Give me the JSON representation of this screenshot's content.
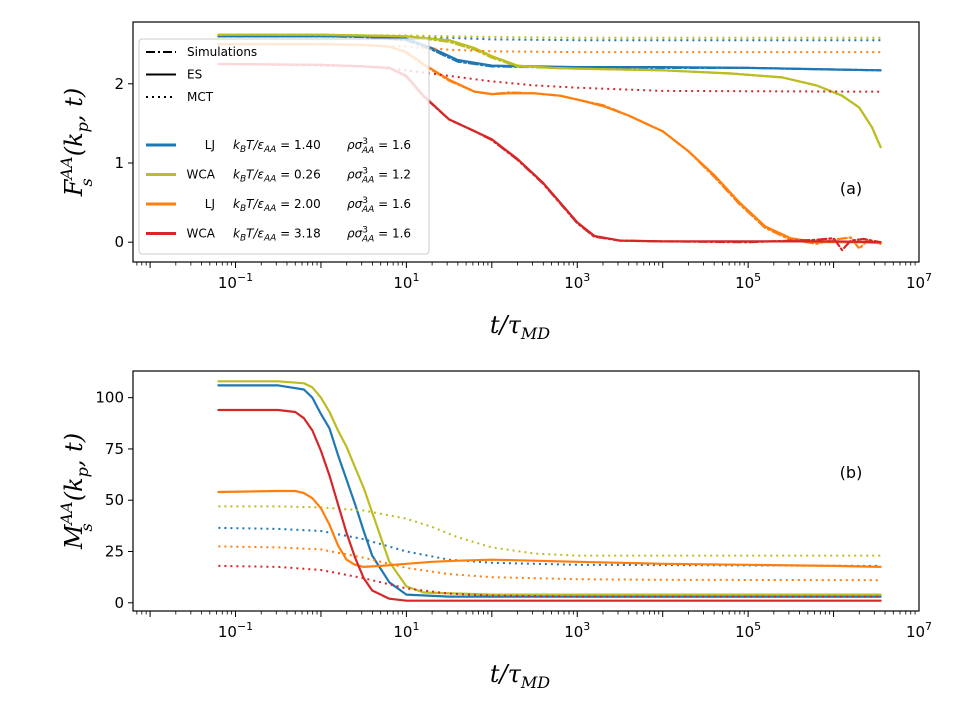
{
  "chart_data": [
    {
      "id": "a",
      "type": "line",
      "panel_label": "(a)",
      "ylabel_main": "F",
      "ylabel_sub": "s",
      "ylabel_sup": "AA",
      "ylabel_args": "(k",
      "ylabel_args_sub": "p",
      "ylabel_args_end": ", t)",
      "xlabel_main": "t/τ",
      "xlabel_sub": "MD",
      "xscale": "log",
      "xlim": [
        -2.2,
        7
      ],
      "ylim": [
        -0.25,
        2.78
      ],
      "xticks": [
        {
          "v": -1,
          "base": "10",
          "exp": "−1"
        },
        {
          "v": 1,
          "base": "10",
          "exp": "1"
        },
        {
          "v": 3,
          "base": "10",
          "exp": "3"
        },
        {
          "v": 5,
          "base": "10",
          "exp": "5"
        },
        {
          "v": 7,
          "base": "10",
          "exp": "7"
        }
      ],
      "yticks": [
        {
          "v": 0,
          "label": "0"
        },
        {
          "v": 1,
          "label": "1"
        },
        {
          "v": 2,
          "label": "2"
        }
      ],
      "legend_styles": [
        {
          "style": "dashdot",
          "label": "Simulations"
        },
        {
          "style": "solid",
          "label": "ES"
        },
        {
          "style": "dotted",
          "label": "MCT"
        }
      ],
      "legend_systems": [
        {
          "color": "#1f77b4",
          "model": "LJ",
          "temp": "k_BT/ε_AA = 1.40",
          "temp_value": "1.40",
          "density_value": "1.6"
        },
        {
          "color": "#bcbd22",
          "model": "WCA",
          "temp": "k_BT/ε_AA = 0.26",
          "temp_value": "0.26",
          "density_value": "1.2"
        },
        {
          "color": "#ff7f0e",
          "model": "LJ",
          "temp": "k_BT/ε_AA = 2.00",
          "temp_value": "2.00",
          "density_value": "1.6"
        },
        {
          "color": "#d62728",
          "model": "WCA",
          "temp": "k_BT/ε_AA = 3.18",
          "temp_value": "3.18",
          "density_value": "1.6"
        }
      ],
      "series": [
        {
          "name": "LJ T=1.40 ES",
          "color": "#1f77b4",
          "style": "solid",
          "x": [
            -1.2,
            0,
            0.5,
            1,
            1.3,
            1.6,
            2,
            2.5,
            3,
            4,
            5,
            6,
            6.55
          ],
          "y": [
            2.6,
            2.6,
            2.6,
            2.57,
            2.45,
            2.3,
            2.23,
            2.22,
            2.21,
            2.21,
            2.2,
            2.18,
            2.17
          ]
        },
        {
          "name": "LJ T=1.40 Sim",
          "color": "#1f77b4",
          "style": "dashdot",
          "x": [
            -1.2,
            0,
            0.5,
            1,
            1.3,
            1.6,
            2,
            2.5,
            3,
            4,
            5,
            6,
            6.55
          ],
          "y": [
            2.6,
            2.6,
            2.59,
            2.55,
            2.43,
            2.28,
            2.22,
            2.21,
            2.21,
            2.2,
            2.2,
            2.18,
            2.17
          ]
        },
        {
          "name": "LJ T=1.40 MCT",
          "color": "#1f77b4",
          "style": "dotted",
          "x": [
            -1.2,
            1,
            1.5,
            2,
            3,
            6.55
          ],
          "y": [
            2.6,
            2.6,
            2.58,
            2.56,
            2.55,
            2.55
          ]
        },
        {
          "name": "WCA T=0.26 ES",
          "color": "#bcbd22",
          "style": "solid",
          "x": [
            -1.2,
            0,
            1,
            1.5,
            1.8,
            2,
            2.3,
            2.7,
            3,
            4,
            4.8,
            5.4,
            5.8,
            6.1,
            6.3,
            6.45,
            6.55
          ],
          "y": [
            2.62,
            2.62,
            2.6,
            2.55,
            2.45,
            2.35,
            2.23,
            2.2,
            2.19,
            2.17,
            2.13,
            2.08,
            1.98,
            1.85,
            1.7,
            1.45,
            1.2
          ]
        },
        {
          "name": "WCA T=0.26 Sim",
          "color": "#bcbd22",
          "style": "dashdot",
          "x": [
            -1.2,
            0,
            1,
            1.5,
            1.8,
            2,
            2.3,
            2.7,
            3,
            4,
            4.8,
            5.4,
            5.8,
            6.1,
            6.3,
            6.45,
            6.55
          ],
          "y": [
            2.62,
            2.62,
            2.6,
            2.53,
            2.43,
            2.33,
            2.22,
            2.2,
            2.19,
            2.17,
            2.13,
            2.08,
            1.98,
            1.85,
            1.7,
            1.45,
            1.2
          ]
        },
        {
          "name": "WCA T=0.26 MCT",
          "color": "#bcbd22",
          "style": "dotted",
          "x": [
            -1.2,
            1,
            2,
            3,
            6.55
          ],
          "y": [
            2.62,
            2.61,
            2.59,
            2.58,
            2.58
          ]
        },
        {
          "name": "LJ T=2.00 ES",
          "color": "#ff7f0e",
          "style": "solid",
          "x": [
            -1.2,
            0,
            0.5,
            0.8,
            1,
            1.2,
            1.5,
            1.8,
            2.0,
            2.2,
            2.5,
            2.8,
            3.0,
            3.3,
            3.6,
            4.0,
            4.3,
            4.6,
            4.9,
            5.2,
            5.5,
            5.8,
            6.0,
            6.3,
            6.55
          ],
          "y": [
            2.5,
            2.5,
            2.49,
            2.47,
            2.4,
            2.25,
            2.05,
            1.9,
            1.87,
            1.88,
            1.88,
            1.85,
            1.8,
            1.72,
            1.6,
            1.4,
            1.15,
            0.85,
            0.5,
            0.2,
            0.05,
            0.0,
            0.0,
            0.0,
            -0.01
          ]
        },
        {
          "name": "LJ T=2.00 Sim",
          "color": "#ff7f0e",
          "style": "dashdot",
          "x": [
            -1.2,
            0,
            0.5,
            0.8,
            1,
            1.2,
            1.5,
            1.8,
            2.0,
            2.2,
            2.5,
            2.8,
            3.0,
            3.3,
            3.6,
            4.0,
            4.3,
            4.6,
            4.9,
            5.2,
            5.5,
            5.8,
            6.0,
            6.2,
            6.3,
            6.4,
            6.55
          ],
          "y": [
            2.5,
            2.5,
            2.49,
            2.47,
            2.39,
            2.24,
            2.04,
            1.9,
            1.87,
            1.89,
            1.88,
            1.85,
            1.8,
            1.73,
            1.6,
            1.4,
            1.15,
            0.83,
            0.48,
            0.18,
            0.03,
            -0.02,
            0.03,
            0.06,
            -0.08,
            0.02,
            -0.02
          ]
        },
        {
          "name": "LJ T=2.00 MCT",
          "color": "#ff7f0e",
          "style": "dotted",
          "x": [
            -1.2,
            0.5,
            1,
            1.5,
            2,
            3,
            6.55
          ],
          "y": [
            2.5,
            2.49,
            2.47,
            2.43,
            2.41,
            2.4,
            2.4
          ]
        },
        {
          "name": "WCA T=3.18 ES",
          "color": "#d62728",
          "style": "solid",
          "x": [
            -1.2,
            0,
            0.5,
            0.8,
            1,
            1.2,
            1.5,
            1.8,
            2.0,
            2.3,
            2.6,
            2.8,
            3.0,
            3.2,
            3.5,
            4.0,
            5.0,
            6.0,
            6.55
          ],
          "y": [
            2.25,
            2.24,
            2.22,
            2.2,
            2.1,
            1.85,
            1.55,
            1.4,
            1.3,
            1.05,
            0.75,
            0.5,
            0.25,
            0.08,
            0.02,
            0.01,
            0.01,
            0.01,
            0.0
          ]
        },
        {
          "name": "WCA T=3.18 Sim",
          "color": "#d62728",
          "style": "dashdot",
          "x": [
            -1.2,
            0,
            0.5,
            0.8,
            1,
            1.2,
            1.5,
            1.8,
            2.0,
            2.3,
            2.6,
            2.8,
            3.0,
            3.2,
            3.5,
            4.0,
            5.0,
            5.8,
            6.0,
            6.1,
            6.2,
            6.35,
            6.55
          ],
          "y": [
            2.25,
            2.24,
            2.22,
            2.2,
            2.09,
            1.84,
            1.55,
            1.4,
            1.29,
            1.04,
            0.74,
            0.49,
            0.24,
            0.07,
            0.02,
            0.01,
            0.0,
            0.03,
            0.05,
            -0.1,
            0.02,
            0.04,
            0.0
          ]
        },
        {
          "name": "WCA T=3.18 MCT",
          "color": "#d62728",
          "style": "dotted",
          "x": [
            -1.2,
            0.5,
            1,
            1.5,
            2,
            2.5,
            3,
            4,
            6.55
          ],
          "y": [
            2.25,
            2.22,
            2.17,
            2.1,
            2.03,
            1.98,
            1.95,
            1.91,
            1.9
          ]
        }
      ]
    },
    {
      "id": "b",
      "type": "line",
      "panel_label": "(b)",
      "ylabel_main": "M",
      "ylabel_sub": "s",
      "ylabel_sup": "AA",
      "ylabel_args": "(k",
      "ylabel_args_sub": "p",
      "ylabel_args_end": ", t)",
      "xlabel_main": "t/τ",
      "xlabel_sub": "MD",
      "xscale": "log",
      "xlim": [
        -2.2,
        7
      ],
      "ylim": [
        -4,
        113
      ],
      "xticks": [
        {
          "v": -1,
          "base": "10",
          "exp": "−1"
        },
        {
          "v": 1,
          "base": "10",
          "exp": "1"
        },
        {
          "v": 3,
          "base": "10",
          "exp": "3"
        },
        {
          "v": 5,
          "base": "10",
          "exp": "5"
        },
        {
          "v": 7,
          "base": "10",
          "exp": "7"
        }
      ],
      "yticks": [
        {
          "v": 0,
          "label": "0"
        },
        {
          "v": 25,
          "label": "25"
        },
        {
          "v": 50,
          "label": "50"
        },
        {
          "v": 75,
          "label": "75"
        },
        {
          "v": 100,
          "label": "100"
        }
      ],
      "series": [
        {
          "name": "LJ T=1.40 ES",
          "color": "#1f77b4",
          "style": "solid",
          "x": [
            -1.2,
            -0.5,
            -0.2,
            -0.1,
            0,
            0.1,
            0.2,
            0.3,
            0.4,
            0.5,
            0.6,
            0.8,
            1.0,
            1.5,
            2,
            6.55
          ],
          "y": [
            106,
            106,
            104,
            100,
            92,
            85,
            72,
            60,
            48,
            35,
            23,
            10,
            4,
            3,
            3,
            3
          ]
        },
        {
          "name": "LJ T=1.40 MCT",
          "color": "#1f77b4",
          "style": "dotted",
          "x": [
            -1.2,
            -0.5,
            0,
            0.5,
            1,
            1.5,
            2,
            3,
            6.55
          ],
          "y": [
            36.5,
            36,
            35,
            31,
            25,
            21,
            19.5,
            18.5,
            18
          ]
        },
        {
          "name": "WCA T=0.26 ES",
          "color": "#bcbd22",
          "style": "solid",
          "x": [
            -1.2,
            -0.5,
            -0.2,
            -0.1,
            0,
            0.1,
            0.2,
            0.3,
            0.4,
            0.5,
            0.6,
            0.7,
            0.8,
            1.0,
            1.2,
            2,
            6.55
          ],
          "y": [
            108,
            108,
            107,
            105,
            100,
            93,
            84,
            76,
            66,
            56,
            44,
            32,
            20,
            8,
            5,
            4,
            4
          ]
        },
        {
          "name": "WCA T=0.26 MCT",
          "color": "#bcbd22",
          "style": "dotted",
          "x": [
            -1.2,
            -0.5,
            0,
            0.5,
            1,
            1.3,
            1.6,
            2,
            2.5,
            3,
            6.55
          ],
          "y": [
            47,
            47,
            46.5,
            45,
            41,
            37,
            32,
            27,
            24,
            23,
            23
          ]
        },
        {
          "name": "LJ T=2.00 ES",
          "color": "#ff7f0e",
          "style": "solid",
          "x": [
            -1.2,
            -0.5,
            -0.3,
            -0.2,
            -0.1,
            0,
            0.1,
            0.2,
            0.3,
            0.4,
            0.5,
            0.7,
            1.0,
            1.3,
            1.6,
            2,
            2.5,
            3,
            4,
            5,
            6,
            6.55
          ],
          "y": [
            54,
            54.5,
            54.5,
            53.5,
            51,
            46,
            38,
            28,
            21,
            18.5,
            17.5,
            18,
            19,
            20,
            20.5,
            21,
            20.5,
            20,
            19,
            18.5,
            18,
            17.5
          ]
        },
        {
          "name": "LJ T=2.00 MCT",
          "color": "#ff7f0e",
          "style": "dotted",
          "x": [
            -1.2,
            -0.5,
            0,
            0.5,
            1,
            1.5,
            2,
            2.5,
            3,
            4,
            6.55
          ],
          "y": [
            27.5,
            27,
            26,
            22,
            17,
            14,
            12.5,
            12,
            11.5,
            11.2,
            11
          ]
        },
        {
          "name": "WCA T=3.18 ES",
          "color": "#d62728",
          "style": "solid",
          "x": [
            -1.2,
            -0.5,
            -0.3,
            -0.2,
            -0.1,
            0,
            0.1,
            0.2,
            0.3,
            0.4,
            0.5,
            0.6,
            0.8,
            1.0,
            2,
            6.55
          ],
          "y": [
            94,
            94,
            93,
            90,
            84,
            74,
            62,
            48,
            34,
            22,
            12,
            6,
            2,
            1,
            1,
            1
          ]
        },
        {
          "name": "WCA T=3.18 MCT",
          "color": "#d62728",
          "style": "dotted",
          "x": [
            -1.2,
            -0.5,
            0,
            0.5,
            1,
            1.5,
            2,
            3,
            6.55
          ],
          "y": [
            18,
            17.5,
            16,
            12,
            7,
            4.5,
            3.5,
            3,
            3
          ]
        }
      ]
    }
  ]
}
